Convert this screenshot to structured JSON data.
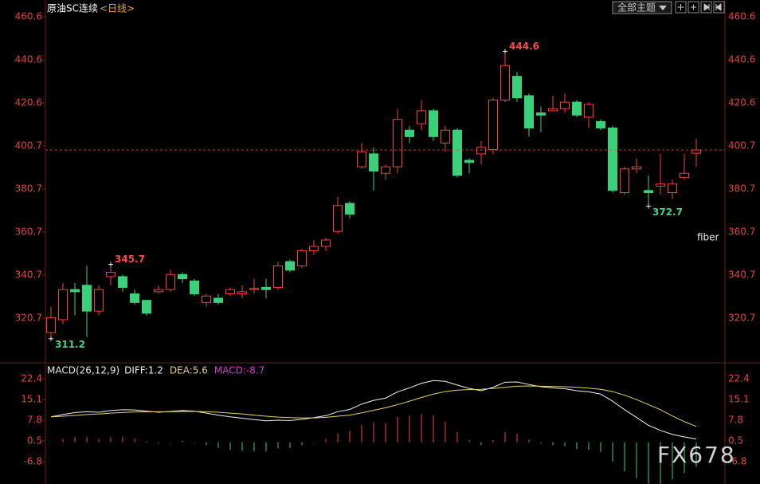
{
  "header": {
    "title": "原油SC连续",
    "period": "<日线>",
    "theme_button": "全部主题"
  },
  "watermark": "FX678",
  "chart_data": [
    {
      "type": "candlestick",
      "open": [
        314,
        320,
        334,
        336,
        324,
        340,
        340,
        332,
        329,
        333,
        334,
        341,
        338,
        328,
        330,
        332,
        332,
        334,
        335,
        335,
        347,
        345,
        352,
        354,
        361,
        374,
        391,
        397,
        388,
        391,
        408,
        411,
        417,
        402,
        408,
        394,
        397,
        399,
        422,
        433,
        424,
        416,
        417,
        418,
        421,
        414,
        412,
        409,
        379,
        390,
        380,
        382,
        379,
        386,
        397.3
      ],
      "high": [
        326,
        337,
        337,
        345,
        336,
        345.7,
        341,
        334,
        329,
        336,
        343,
        342,
        339,
        332,
        332,
        335,
        336,
        339,
        339,
        347,
        348,
        353,
        357,
        358,
        377,
        375,
        402,
        400,
        392,
        418,
        410,
        422,
        418,
        410,
        409,
        395,
        403,
        423,
        444.6,
        435,
        425,
        419,
        424,
        425,
        422,
        421,
        413,
        410,
        391,
        395,
        387,
        397,
        385,
        397,
        404
      ],
      "low": [
        311.2,
        318,
        322,
        312,
        322,
        336,
        333,
        327,
        322,
        332,
        333,
        337,
        331,
        326,
        327,
        331,
        330,
        332,
        330,
        334,
        342,
        344,
        350,
        352,
        360,
        367,
        390,
        380,
        385,
        388,
        402,
        408,
        403,
        398,
        386,
        388,
        392,
        397,
        421,
        421,
        405,
        407,
        417,
        416,
        414,
        409,
        408,
        379,
        378,
        388,
        372.7,
        378,
        376,
        385,
        391
      ],
      "close": [
        321,
        334,
        333,
        324,
        334,
        342,
        335,
        328,
        323,
        334,
        341,
        339,
        332,
        331,
        328,
        334,
        333,
        334.5,
        334,
        345,
        343,
        352,
        354,
        357,
        373,
        369,
        398,
        389,
        391,
        413,
        405,
        417,
        405,
        408,
        387,
        393,
        400,
        422,
        438,
        423,
        409,
        415,
        418,
        421,
        415,
        420,
        409,
        380,
        390,
        391,
        379,
        383,
        383,
        388,
        398.8
      ],
      "up_color": "#ff3b3b",
      "down_color": "#3bd17a",
      "ylim": [
        300,
        467.3
      ],
      "yticks": [
        320.7,
        340.7,
        360.7,
        380.7,
        400.7,
        420.6,
        440.6,
        460.6
      ],
      "last_price_line": true,
      "annotation": "fiber"
    },
    {
      "type": "macd",
      "title": "MACD(26,12,9)",
      "series": [
        {
          "name": "DIFF:1.2",
          "color": "#f0f0f0",
          "type": "line",
          "values": [
            9.0,
            9.8,
            10.5,
            10.8,
            10.6,
            11.2,
            11.5,
            11.4,
            11.0,
            10.6,
            10.9,
            11.2,
            11.0,
            10.3,
            9.6,
            9.0,
            8.5,
            8.0,
            7.6,
            7.8,
            7.7,
            8.1,
            8.7,
            9.4,
            10.8,
            11.6,
            13.5,
            14.8,
            15.6,
            17.8,
            19.2,
            20.8,
            21.8,
            21.5,
            20.2,
            19.0,
            18.2,
            19.4,
            21.2,
            21.3,
            20.4,
            19.6,
            19.2,
            18.9,
            18.2,
            17.8,
            17.0,
            14.5,
            11.5,
            8.8,
            6.0,
            4.2,
            2.8,
            1.9,
            1.2
          ]
        },
        {
          "name": "DEA:5.6",
          "color": "#e6d36a",
          "type": "line",
          "values": [
            9.0,
            9.2,
            9.5,
            9.8,
            10.0,
            10.3,
            10.5,
            10.7,
            10.8,
            10.8,
            10.8,
            10.9,
            10.9,
            10.8,
            10.6,
            10.3,
            10.0,
            9.6,
            9.2,
            8.9,
            8.7,
            8.6,
            8.6,
            8.8,
            9.2,
            9.6,
            10.4,
            11.3,
            12.2,
            13.3,
            14.5,
            15.8,
            17.0,
            17.9,
            18.4,
            18.6,
            18.7,
            19.0,
            19.4,
            19.8,
            19.9,
            19.8,
            19.7,
            19.6,
            19.4,
            19.1,
            18.7,
            17.9,
            16.6,
            15.1,
            13.3,
            11.5,
            9.3,
            7.3,
            5.6
          ]
        },
        {
          "name": "MACD:-8.7",
          "color": "#d23cd2",
          "type": "bar",
          "up_color": "#ff3b3b",
          "down_color": "#3bd17a",
          "values": [
            0,
            1.2,
            2.0,
            2.0,
            1.2,
            1.8,
            2.0,
            1.4,
            0.4,
            -0.4,
            0.2,
            0.6,
            0.2,
            -1.0,
            -2.0,
            -2.6,
            -3.0,
            -3.2,
            -3.2,
            -2.2,
            -2.0,
            -1.0,
            0.2,
            1.2,
            3.2,
            4.0,
            6.2,
            7.0,
            6.8,
            9.0,
            9.4,
            10.0,
            9.6,
            7.2,
            3.6,
            0.8,
            -1.0,
            0.8,
            3.6,
            3.0,
            1.0,
            -0.4,
            -1.0,
            -1.4,
            -2.4,
            -2.6,
            -3.4,
            -6.8,
            -10.2,
            -12.6,
            -14.6,
            -14.6,
            -13.0,
            -10.8,
            -8.7
          ]
        }
      ],
      "ylim": [
        -14.7,
        27.2
      ],
      "yticks": [
        22.4,
        15.1,
        7.8,
        0.5,
        -6.8
      ]
    }
  ]
}
